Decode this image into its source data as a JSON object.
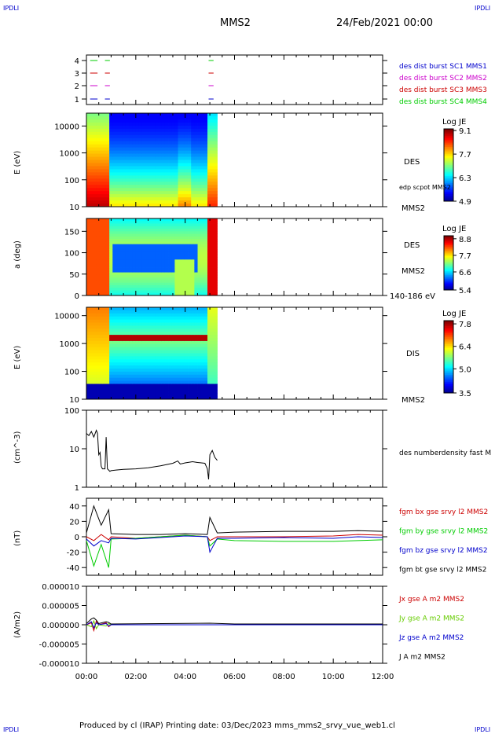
{
  "header": {
    "corner_left": "IPDLI",
    "corner_right": "IPDLI",
    "mission": "MMS2",
    "date": "24/Feb/2021 00:00",
    "corner_bottom_left": "IPDLI",
    "corner_bottom_right": "IPDLI"
  },
  "footer": {
    "text": "Produced by cl (IRAP)   Printing date: 03/Dec/2023   mms_mms2_srvy_vue_web1.cl"
  },
  "chart_data": [
    {
      "type": "line",
      "panel": "burst-availability",
      "y_ticks": [
        "4",
        "3",
        "2",
        "1"
      ],
      "legend": [
        {
          "name": "des dist burst SC1 MMS1",
          "color": "#0000cc"
        },
        {
          "name": "des dist burst SC2 MMS2",
          "color": "#cc00cc"
        },
        {
          "name": "des dist burst SC3 MMS3",
          "color": "#cc0000"
        },
        {
          "name": "des dist burst SC4 MMS4",
          "color": "#00cc00"
        }
      ],
      "intervals_hours": [
        [
          0.15,
          0.45
        ],
        [
          0.75,
          0.95
        ],
        [
          4.95,
          5.15
        ]
      ]
    },
    {
      "type": "heatmap",
      "panel": "des-energy",
      "ylabel": "E (eV)",
      "y_scale": "log",
      "y_ticks": [
        "10000",
        "1000",
        "100",
        "10"
      ],
      "ylim": [
        10,
        30000
      ],
      "colorbar": {
        "title": "Log JE",
        "ticks": [
          "9.1",
          "7.7",
          "6.3",
          "4.9"
        ],
        "range": [
          4.9,
          9.2
        ]
      },
      "labels": [
        "DES",
        "edp scpot MMS2",
        "MMS2"
      ],
      "data_end_hour": 5.3
    },
    {
      "type": "heatmap",
      "panel": "des-pitch-angle",
      "ylabel": "a (deg)",
      "y_ticks": [
        "150",
        "100",
        "50",
        "0"
      ],
      "ylim": [
        0,
        180
      ],
      "colorbar": {
        "title": "Log JE",
        "ticks": [
          "8.8",
          "7.7",
          "6.6",
          "5.4"
        ],
        "range": [
          5.4,
          9.0
        ]
      },
      "labels": [
        "DES",
        "MMS2",
        "140-186 eV"
      ],
      "data_end_hour": 5.3
    },
    {
      "type": "heatmap",
      "panel": "dis-energy",
      "ylabel": "E (eV)",
      "y_scale": "log",
      "y_ticks": [
        "10000",
        "1000",
        "100",
        "10"
      ],
      "ylim": [
        10,
        20000
      ],
      "colorbar": {
        "title": "Log JE",
        "ticks": [
          "7.8",
          "6.4",
          "5.0",
          "3.5"
        ],
        "range": [
          3.5,
          8.0
        ]
      },
      "labels": [
        "DIS",
        "MMS2"
      ],
      "data_end_hour": 5.3
    },
    {
      "type": "line",
      "panel": "density",
      "ylabel": "(cm^-3)",
      "y_scale": "log",
      "y_ticks": [
        "100",
        "10",
        "1"
      ],
      "ylim": [
        1,
        100
      ],
      "series": [
        {
          "name": "des numberdensity fast M",
          "color": "#000000",
          "x": [
            0.0,
            0.1,
            0.2,
            0.3,
            0.4,
            0.45,
            0.5,
            0.55,
            0.6,
            0.65,
            0.75,
            0.8,
            0.85,
            0.9,
            0.95,
            1.0,
            1.2,
            1.5,
            2.0,
            2.5,
            3.0,
            3.5,
            3.7,
            3.8,
            4.0,
            4.3,
            4.5,
            4.8,
            4.9,
            4.95,
            5.0,
            5.1,
            5.2,
            5.3
          ],
          "y": [
            25,
            22,
            28,
            20,
            30,
            25,
            7,
            8,
            3.5,
            3.0,
            3.0,
            20,
            3.0,
            2.8,
            2.6,
            2.7,
            2.8,
            2.9,
            3.0,
            3.2,
            3.6,
            4.2,
            4.8,
            4.0,
            4.3,
            4.6,
            4.4,
            4.2,
            3.0,
            1.6,
            7.0,
            9.0,
            6.0,
            5.0
          ]
        }
      ]
    },
    {
      "type": "line",
      "panel": "magnetic-field",
      "ylabel": "(nT)",
      "y_ticks": [
        "40",
        "20",
        "0",
        "-20",
        "-40"
      ],
      "ylim": [
        -50,
        50
      ],
      "series": [
        {
          "name": "fgm bx gse srvy l2 MMS2",
          "color": "#cc0000",
          "x": [
            0.0,
            0.3,
            0.6,
            0.9,
            1.0,
            2.0,
            3.0,
            4.0,
            4.9,
            5.0,
            5.3,
            6.0,
            8.0,
            10.0,
            11.0,
            12.0
          ],
          "y": [
            0,
            -5,
            3,
            -4,
            0,
            -2,
            0,
            2,
            0,
            -5,
            0,
            0,
            0,
            1,
            3,
            2
          ]
        },
        {
          "name": "fgm by gse srvy l2 MMS2",
          "color": "#00cc00",
          "x": [
            0.0,
            0.3,
            0.6,
            0.9,
            1.0,
            2.0,
            3.0,
            4.0,
            4.9,
            5.0,
            5.3,
            6.0,
            8.0,
            10.0,
            11.0,
            12.0
          ],
          "y": [
            -5,
            -38,
            -10,
            -40,
            -3,
            -2,
            0,
            2,
            0,
            -12,
            -3,
            -5,
            -6,
            -6,
            -5,
            -4
          ]
        },
        {
          "name": "fgm bz gse srvy l2 MMS2",
          "color": "#0000cc",
          "x": [
            0.0,
            0.3,
            0.6,
            0.9,
            1.0,
            2.0,
            3.0,
            4.0,
            4.9,
            5.0,
            5.3,
            6.0,
            8.0,
            10.0,
            11.0,
            12.0
          ],
          "y": [
            -3,
            -12,
            -5,
            -8,
            -2,
            -3,
            -1,
            1,
            0,
            -20,
            -2,
            -2,
            -1,
            -2,
            0,
            -1
          ]
        },
        {
          "name": "fgm bt gse srvy l2 MMS2",
          "color": "#000000",
          "x": [
            0.0,
            0.3,
            0.6,
            0.9,
            1.0,
            2.0,
            3.0,
            4.0,
            4.9,
            5.0,
            5.3,
            6.0,
            8.0,
            10.0,
            11.0,
            12.0
          ],
          "y": [
            5,
            40,
            15,
            35,
            4,
            3,
            3,
            4,
            3,
            25,
            5,
            6,
            7,
            7,
            8,
            7
          ]
        }
      ]
    },
    {
      "type": "line",
      "panel": "current-density",
      "ylabel": "(A/m2)",
      "y_ticks": [
        "0.000010",
        "0.000005",
        "0.000000",
        "-0.000005",
        "-0.000010"
      ],
      "ylim": [
        -1e-05,
        1e-05
      ],
      "series": [
        {
          "name": "Jx gse A m2 MMS2",
          "color": "#cc0000",
          "x": [
            0.0,
            0.2,
            0.3,
            0.4,
            0.5,
            0.8,
            0.9,
            1.0,
            12.0
          ],
          "y": [
            0,
            5e-07,
            -1.5e-06,
            1e-06,
            0,
            5e-07,
            -5e-07,
            0,
            0
          ]
        },
        {
          "name": "Jy gse A m2 MMS2",
          "color": "#66cc00",
          "x": [
            0.0,
            0.2,
            0.3,
            0.4,
            0.5,
            0.8,
            0.9,
            1.0,
            12.0
          ],
          "y": [
            0,
            -5e-07,
            1e-06,
            -1e-06,
            0,
            -3e-07,
            3e-07,
            0,
            0
          ]
        },
        {
          "name": "Jz gse A m2 MMS2",
          "color": "#0000cc",
          "x": [
            0.0,
            0.2,
            0.3,
            0.4,
            0.5,
            0.8,
            0.9,
            1.0,
            12.0
          ],
          "y": [
            0,
            8e-07,
            -8e-07,
            5e-07,
            0,
            3e-07,
            -3e-07,
            0,
            0
          ]
        },
        {
          "name": "J A m2 MMS2",
          "color": "#000000",
          "x": [
            0.0,
            0.2,
            0.3,
            0.4,
            0.5,
            0.8,
            0.9,
            1.0,
            5.0,
            6.0,
            12.0
          ],
          "y": [
            3e-07,
            1.5e-06,
            1.8e-06,
            1.2e-06,
            3e-07,
            8e-07,
            6e-07,
            2e-07,
            4e-07,
            2e-07,
            2e-07
          ]
        }
      ]
    }
  ],
  "x_axis": {
    "range_hours": [
      0,
      12
    ],
    "tick_labels": [
      "00:00",
      "02:00",
      "04:00",
      "06:00",
      "08:00",
      "10:00",
      "12:00"
    ]
  }
}
